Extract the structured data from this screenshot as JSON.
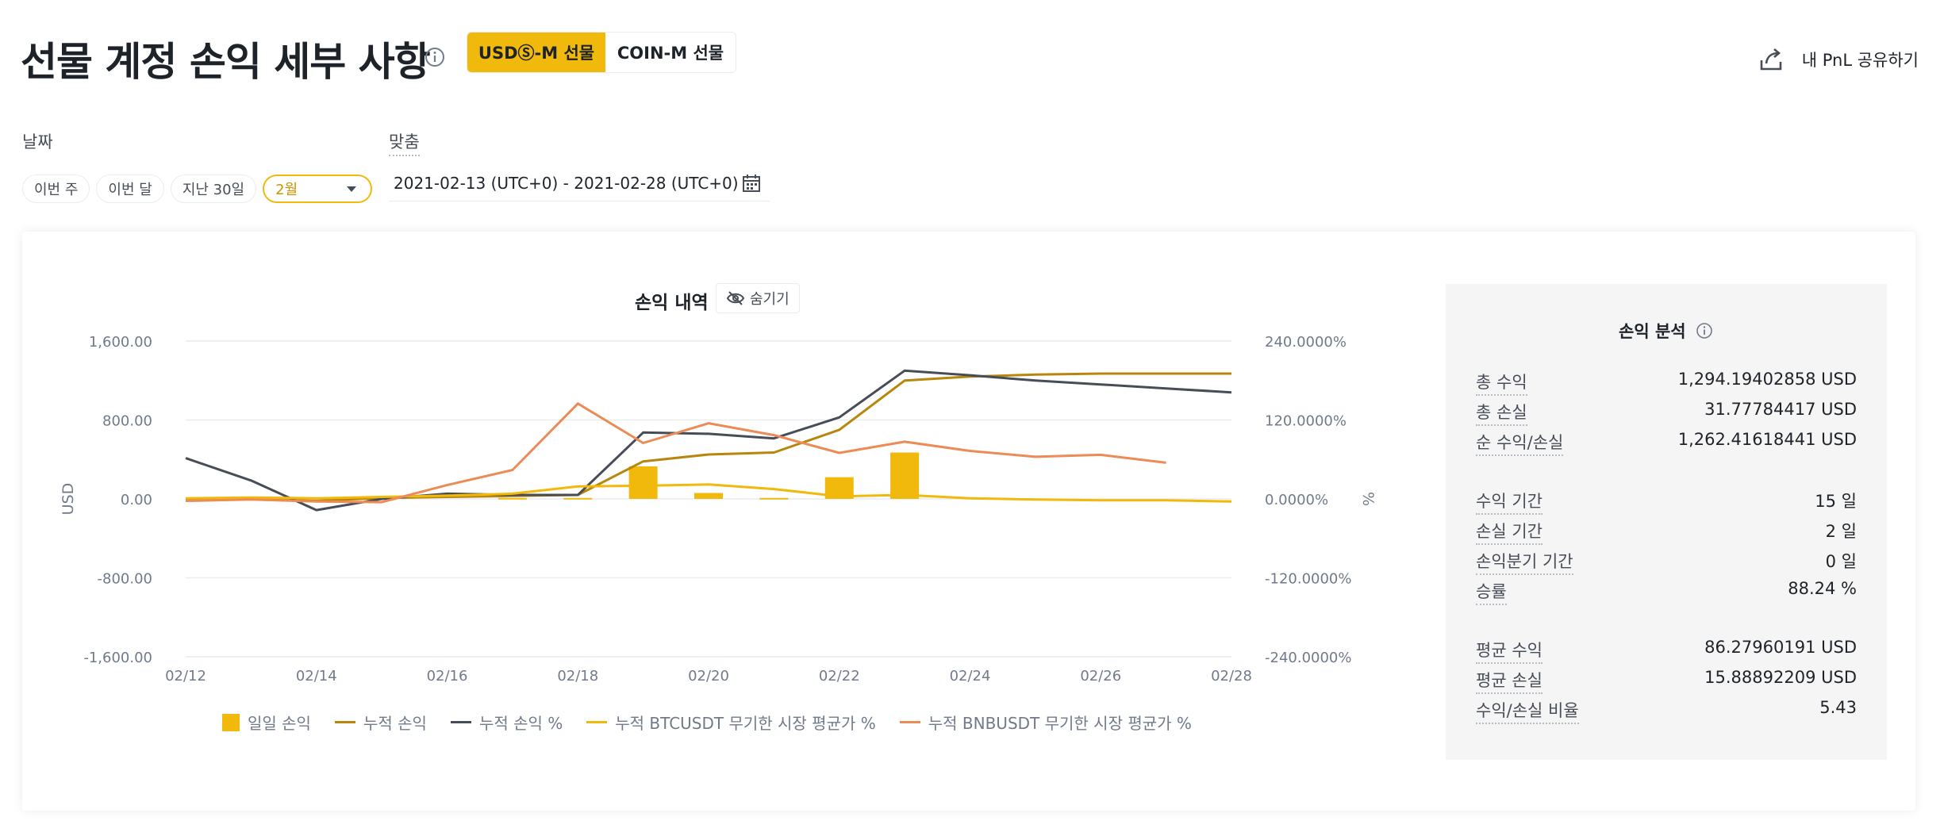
{
  "header": {
    "title": "선물 계정 손익 세부 사항",
    "tabs": [
      {
        "label": "USDⓈ-M 선물",
        "active": true
      },
      {
        "label": "COIN-M 선물",
        "active": false
      }
    ],
    "share_label": "내 PnL 공유하기"
  },
  "filters": {
    "date_label": "날짜",
    "custom_label": "맞춤",
    "chips": [
      "이번 주",
      "이번 달",
      "지난 30일"
    ],
    "month_select": "2월",
    "range": "2021-02-13 (UTC+0) - 2021-02-28 (UTC+0)"
  },
  "chart": {
    "title": "손익 내역",
    "hide_label": "숨기기"
  },
  "legend": [
    {
      "label": "일일 손익",
      "color": "#f0b90b",
      "kind": "bar"
    },
    {
      "label": "누적 손익",
      "color": "#b8860b",
      "kind": "line"
    },
    {
      "label": "누적 손익 %",
      "color": "#474d57",
      "kind": "line"
    },
    {
      "label": "누적 BTCUSDT 무기한 시장 평균가 %",
      "color": "#f0b90b",
      "kind": "line"
    },
    {
      "label": "누적 BNBUSDT 무기한 시장 평균가 %",
      "color": "#ec8b55",
      "kind": "line"
    }
  ],
  "analysis": {
    "title": "손익 분석",
    "groups": [
      [
        {
          "label": "총 수익",
          "value": "1,294.19402858 USD"
        },
        {
          "label": "총 손실",
          "value": "31.77784417 USD"
        },
        {
          "label": "순 수익/손실",
          "value": "1,262.41618441 USD"
        }
      ],
      [
        {
          "label": "수익 기간",
          "value": "15 일"
        },
        {
          "label": "손실 기간",
          "value": "2 일"
        },
        {
          "label": "손익분기 기간",
          "value": "0 일"
        },
        {
          "label": "승률",
          "value": "88.24 %"
        }
      ],
      [
        {
          "label": "평균 수익",
          "value": "86.27960191 USD"
        },
        {
          "label": "평균 손실",
          "value": "15.88892209 USD"
        },
        {
          "label": "수익/손실 비율",
          "value": "5.43"
        }
      ]
    ]
  },
  "chart_data": {
    "type": "line",
    "title": "손익 내역",
    "ylabel": "USD",
    "y2label": "%",
    "ylim": [
      -1600,
      1600
    ],
    "y2lim": [
      -240,
      240
    ],
    "yticks": [
      "1,600.00",
      "800.00",
      "0.00",
      "-800.00",
      "-1,600.00"
    ],
    "y2ticks": [
      "240.0000%",
      "120.0000%",
      "0.0000%",
      "-120.0000%",
      "-240.0000%"
    ],
    "xticks": [
      "02/12",
      "02/14",
      "02/16",
      "02/18",
      "02/20",
      "02/22",
      "02/24",
      "02/26",
      "02/28"
    ],
    "x": [
      "02/12",
      "02/13",
      "02/14",
      "02/15",
      "02/16",
      "02/17",
      "02/18",
      "02/19",
      "02/20",
      "02/21",
      "02/22",
      "02/23",
      "02/24",
      "02/25",
      "02/26",
      "02/27",
      "02/28"
    ],
    "bars": {
      "name": "일일 손익",
      "axis": "left",
      "values": [
        0,
        10,
        0,
        5,
        0,
        10,
        10,
        330,
        60,
        10,
        220,
        470,
        0,
        0,
        0,
        0,
        0
      ]
    },
    "series": [
      {
        "name": "누적 손익",
        "axis": "left",
        "color": "#b8860b",
        "values": [
          -10,
          0,
          -20,
          10,
          20,
          30,
          40,
          380,
          450,
          470,
          700,
          1200,
          1240,
          1260,
          1270,
          1270,
          1270
        ]
      },
      {
        "name": "누적 손익 %",
        "axis": "right",
        "color": "#474d57",
        "values": [
          62,
          28,
          -17,
          0,
          8,
          6,
          6,
          101,
          99,
          92,
          124,
          195,
          188,
          180,
          174,
          168,
          162
        ]
      },
      {
        "name": "누적 BTCUSDT 무기한 시장 평균가 %",
        "axis": "right",
        "color": "#f0b90b",
        "values": [
          1,
          2,
          1,
          3,
          5,
          8,
          19,
          20,
          22,
          15,
          4,
          6,
          1,
          -1,
          -2,
          -2,
          -4
        ]
      },
      {
        "name": "누적 BNBUSDT 무기한 시장 평균가 %",
        "axis": "right",
        "color": "#ec8b55",
        "values": [
          -3,
          -1,
          -4,
          -5,
          21,
          44,
          145,
          85,
          115,
          97,
          70,
          87,
          73,
          64,
          67,
          55,
          null
        ]
      }
    ]
  }
}
